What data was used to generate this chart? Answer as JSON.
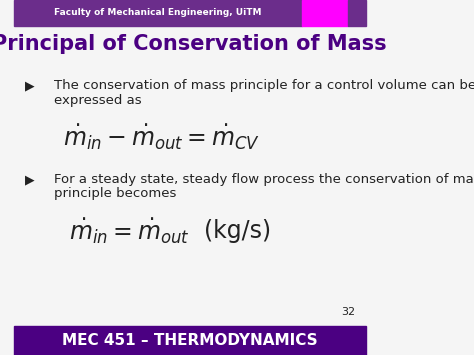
{
  "title": "Principal of Conservation of Mass",
  "header_text": "Faculty of Mechanical Engineering, UiTM",
  "footer_text": "MEC 451 – THERMODYNAMICS",
  "page_number": "32",
  "header_bg": "#6b2d8b",
  "header_magenta": "#ff00ff",
  "footer_bg": "#4b0082",
  "title_color": "#4b0082",
  "body_bg": "#f5f5f5",
  "bullet1_text1": "The conservation of mass principle for a control volume can be",
  "bullet1_text2": "expressed as",
  "equation1": "$\\dot{m}_{in} - \\dot{m}_{out} = \\dot{m}_{CV}$",
  "bullet2_text1": "For a steady state, steady flow process the conservation of mass",
  "bullet2_text2": "principle becomes",
  "equation2": "$\\dot{m}_{in} = \\dot{m}_{out}$",
  "equation2_units": "(kg/s)",
  "text_color": "#222222",
  "header_text_color": "#ffffff",
  "footer_text_color": "#ffffff",
  "title_fontsize": 15,
  "body_fontsize": 9.5,
  "equation_fontsize": 17,
  "footer_fontsize": 11
}
